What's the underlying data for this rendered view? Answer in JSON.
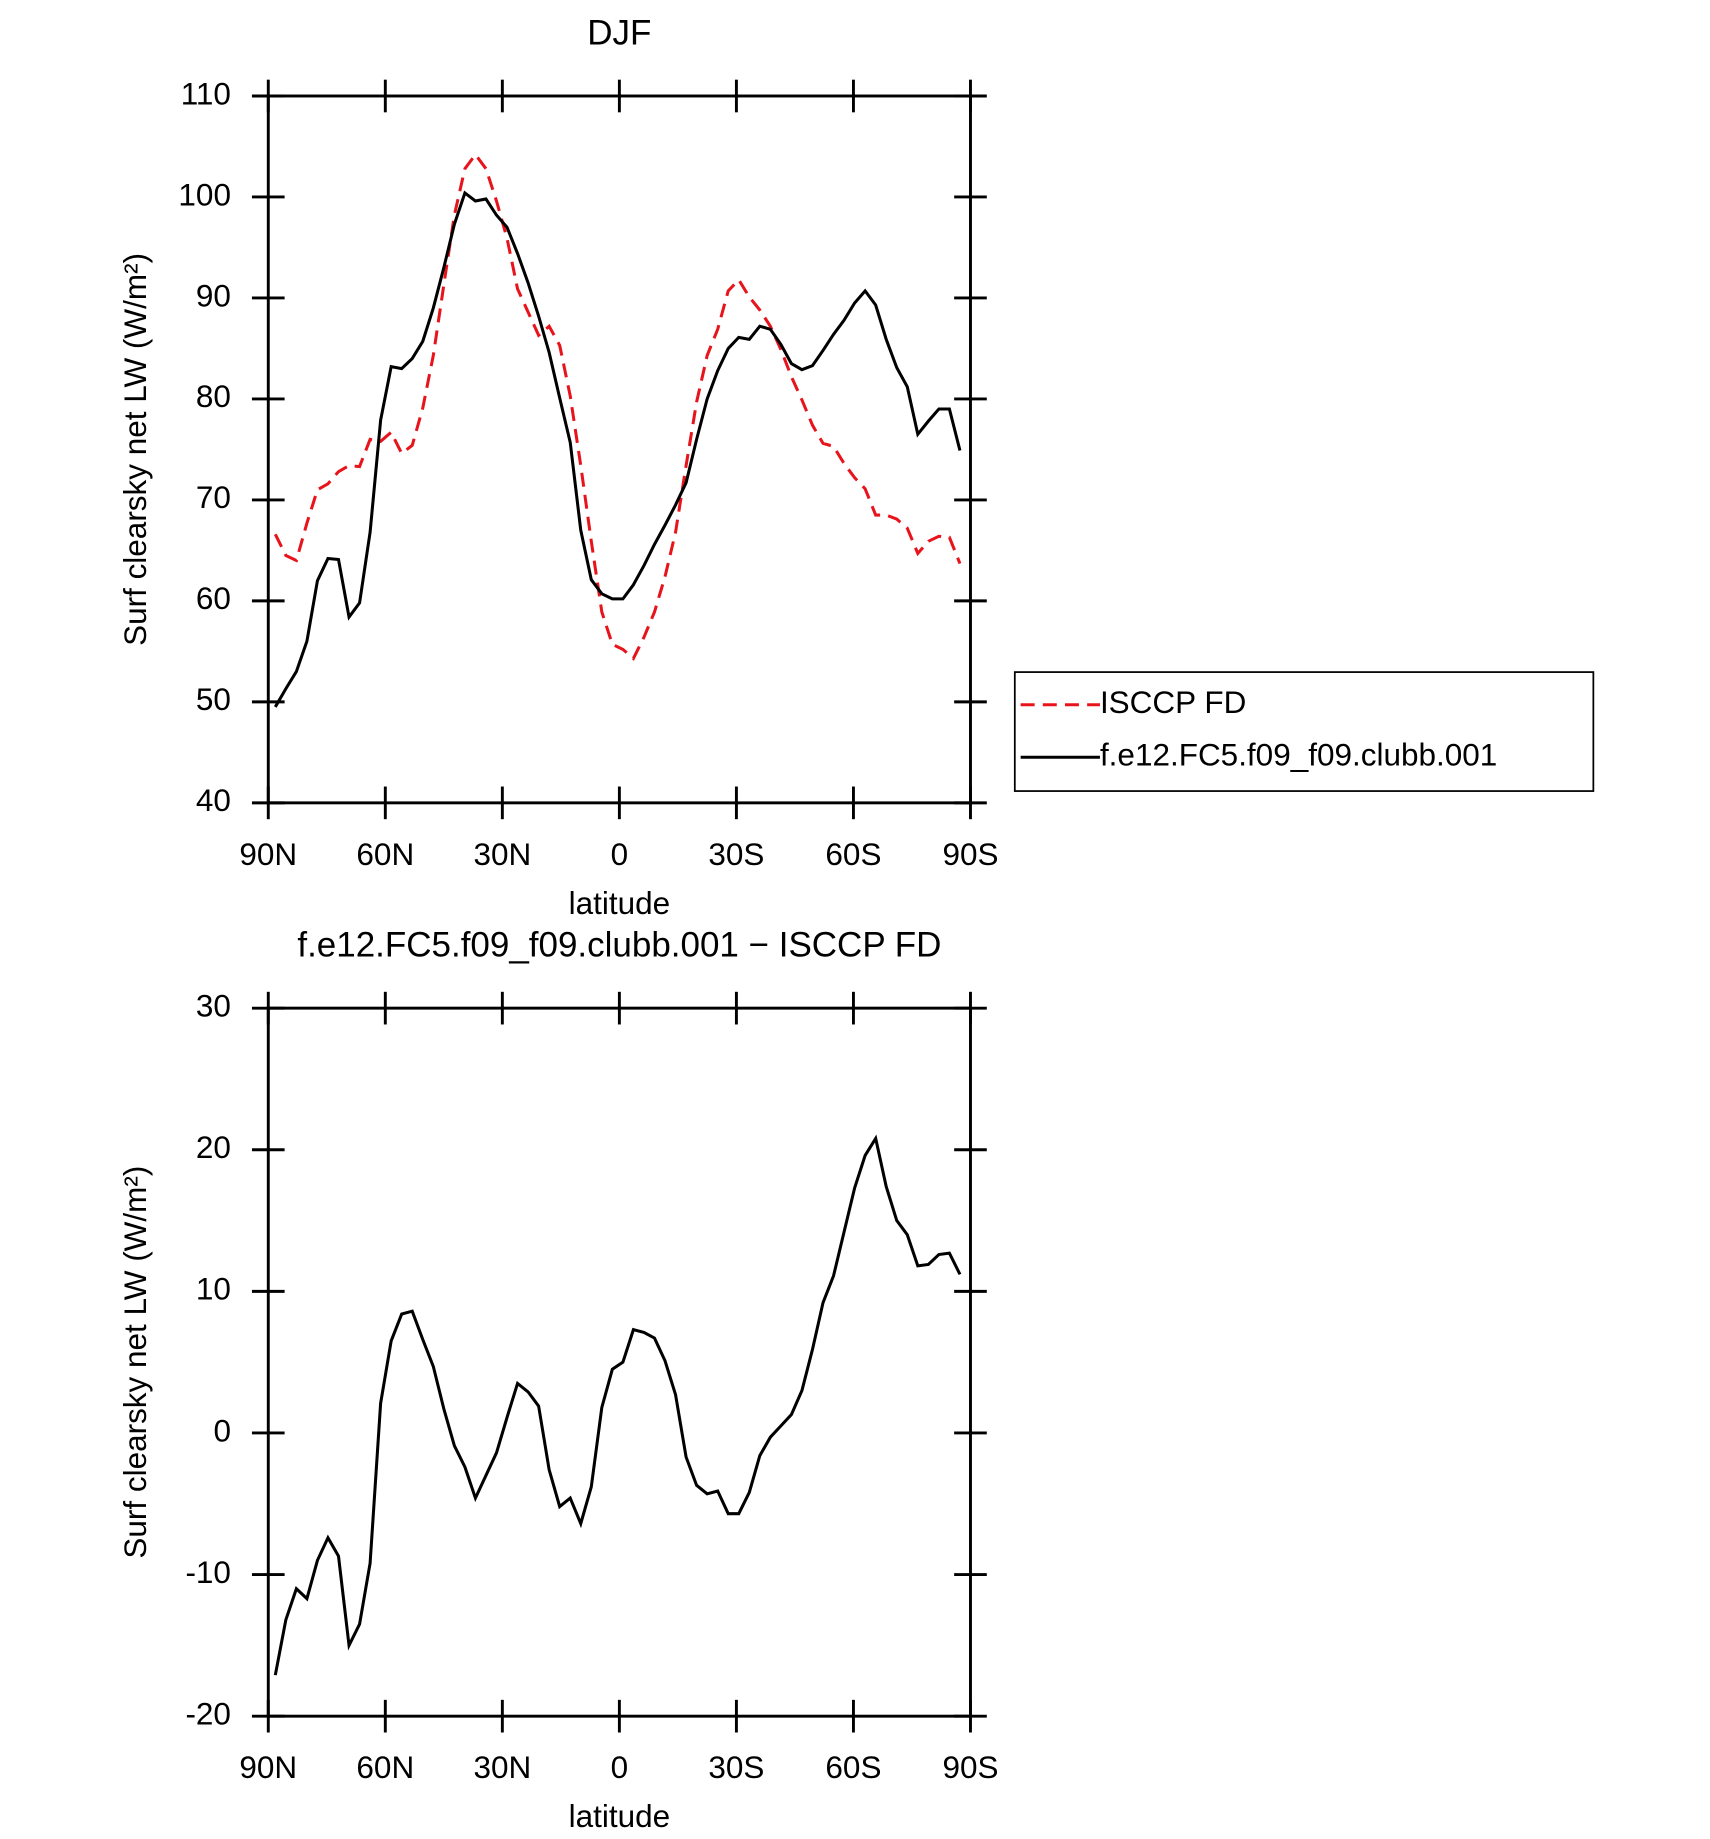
{
  "chart_data": [
    {
      "type": "line",
      "title": "DJF",
      "xlabel": "latitude",
      "ylabel": "Surf clearsky net LW (W/m²)",
      "x": [
        88.2,
        85.5,
        82.8,
        80.1,
        77.4,
        74.7,
        72.0,
        69.3,
        66.6,
        63.9,
        61.2,
        58.5,
        55.8,
        53.1,
        50.4,
        47.7,
        45.0,
        42.3,
        39.6,
        36.9,
        34.2,
        31.5,
        28.8,
        26.1,
        23.4,
        20.7,
        18.0,
        15.3,
        12.6,
        9.9,
        7.2,
        4.5,
        1.8,
        -0.9,
        -3.6,
        -6.3,
        -9.0,
        -11.7,
        -14.4,
        -17.1,
        -19.8,
        -22.5,
        -25.2,
        -27.9,
        -30.6,
        -33.3,
        -36.0,
        -38.7,
        -41.4,
        -44.1,
        -46.8,
        -49.5,
        -52.2,
        -54.9,
        -57.6,
        -60.3,
        -63.0,
        -65.7,
        -68.4,
        -71.1,
        -73.8,
        -76.5,
        -79.2,
        -81.9,
        -84.6,
        -87.3
      ],
      "series": [
        {
          "name": "ISCCP FD",
          "color": "#e8141c",
          "dash": "dashed",
          "values": [
            66.6,
            64.5,
            64,
            67.7,
            71,
            71.6,
            72.8,
            73.4,
            73.3,
            76,
            75.8,
            76.7,
            74.6,
            75.4,
            79.1,
            84.3,
            91.3,
            98.2,
            102.8,
            104.2,
            102.8,
            99.6,
            95.9,
            90.9,
            88.6,
            86.3,
            87.2,
            85.3,
            80.3,
            73.4,
            65.9,
            58.9,
            55.7,
            55.2,
            54.3,
            56.4,
            58.9,
            62.4,
            66.8,
            73.4,
            79.7,
            84.3,
            86.9,
            90.7,
            91.8,
            90.1,
            88.8,
            87.2,
            84.9,
            82.2,
            79.9,
            77.4,
            75.6,
            75.3,
            73.6,
            72.2,
            71.1,
            68.5,
            68.5,
            68.1,
            67.2,
            64.7,
            65.9,
            66.4,
            66.3,
            63.7
          ]
        },
        {
          "name": "f.e12.FC5.f09_f09.clubb.001",
          "color": "#000000",
          "dash": "solid",
          "values": [
            49.5,
            51.3,
            53,
            56,
            62,
            64.2,
            64.1,
            58.4,
            59.8,
            66.8,
            77.9,
            83.2,
            83,
            84,
            85.7,
            89,
            93,
            97.3,
            100.4,
            99.6,
            99.8,
            98.2,
            97,
            94.4,
            91.5,
            88.2,
            84.6,
            80.1,
            75.7,
            67,
            62.1,
            60.7,
            60.2,
            60.2,
            61.6,
            63.5,
            65.6,
            67.5,
            69.5,
            71.7,
            76,
            80,
            82.8,
            85,
            86.1,
            85.9,
            87.2,
            86.9,
            85.4,
            83.5,
            82.9,
            83.3,
            84.8,
            86.4,
            87.8,
            89.5,
            90.7,
            89.3,
            85.9,
            83.1,
            81.2,
            76.5,
            77.8,
            79,
            79,
            74.9
          ]
        }
      ],
      "xlim": [
        90,
        -90
      ],
      "xticks": [
        {
          "value": 90,
          "label": "90N"
        },
        {
          "value": 60,
          "label": "60N"
        },
        {
          "value": 30,
          "label": "30N"
        },
        0,
        {
          "value": -30,
          "label": "30S"
        },
        {
          "value": -60,
          "label": "60S"
        },
        {
          "value": -90,
          "label": "90S"
        }
      ],
      "ylim": [
        40,
        110
      ],
      "yticks": [
        40,
        50,
        60,
        70,
        80,
        90,
        100,
        110
      ],
      "legend": "right"
    },
    {
      "type": "line",
      "title": "f.e12.FC5.f09_f09.clubb.001 − ISCCP FD",
      "xlabel": "latitude",
      "ylabel": "Surf clearsky net LW (W/m²)",
      "x": [
        88.2,
        85.5,
        82.8,
        80.1,
        77.4,
        74.7,
        72.0,
        69.3,
        66.6,
        63.9,
        61.2,
        58.5,
        55.8,
        53.1,
        50.4,
        47.7,
        45.0,
        42.3,
        39.6,
        36.9,
        34.2,
        31.5,
        28.8,
        26.1,
        23.4,
        20.7,
        18.0,
        15.3,
        12.6,
        9.9,
        7.2,
        4.5,
        1.8,
        -0.9,
        -3.6,
        -6.3,
        -9.0,
        -11.7,
        -14.4,
        -17.1,
        -19.8,
        -22.5,
        -25.2,
        -27.9,
        -30.6,
        -33.3,
        -36.0,
        -38.7,
        -41.4,
        -44.1,
        -46.8,
        -49.5,
        -52.2,
        -54.9,
        -57.6,
        -60.3,
        -63.0,
        -65.7,
        -68.4,
        -71.1,
        -73.8,
        -76.5,
        -79.2,
        -81.9,
        -84.6,
        -87.3
      ],
      "values": [
        -17.1,
        -13.2,
        -11,
        -11.7,
        -9,
        -7.4,
        -8.7,
        -15,
        -13.5,
        -9.2,
        2.1,
        6.5,
        8.4,
        8.6,
        6.6,
        4.7,
        1.7,
        -0.9,
        -2.4,
        -4.6,
        -3,
        -1.4,
        1.1,
        3.5,
        2.9,
        1.9,
        -2.6,
        -5.2,
        -4.6,
        -6.4,
        -3.8,
        1.8,
        4.5,
        5,
        7.3,
        7.1,
        6.7,
        5.1,
        2.7,
        -1.7,
        -3.7,
        -4.3,
        -4.1,
        -5.7,
        -5.7,
        -4.2,
        -1.6,
        -0.3,
        0.5,
        1.3,
        3,
        5.9,
        9.2,
        11.1,
        14.2,
        17.3,
        19.6,
        20.8,
        17.4,
        15,
        14,
        11.8,
        11.9,
        12.6,
        12.7,
        11.2
      ],
      "color": "#000000",
      "xlim": [
        90,
        -90
      ],
      "xticks": [
        {
          "value": 90,
          "label": "90N"
        },
        {
          "value": 60,
          "label": "60N"
        },
        {
          "value": 30,
          "label": "30N"
        },
        0,
        {
          "value": -30,
          "label": "30S"
        },
        {
          "value": -60,
          "label": "60S"
        },
        {
          "value": -90,
          "label": "90S"
        }
      ],
      "ylim": [
        -20,
        30
      ],
      "yticks": [
        -20,
        -10,
        0,
        10,
        20,
        30
      ]
    }
  ]
}
